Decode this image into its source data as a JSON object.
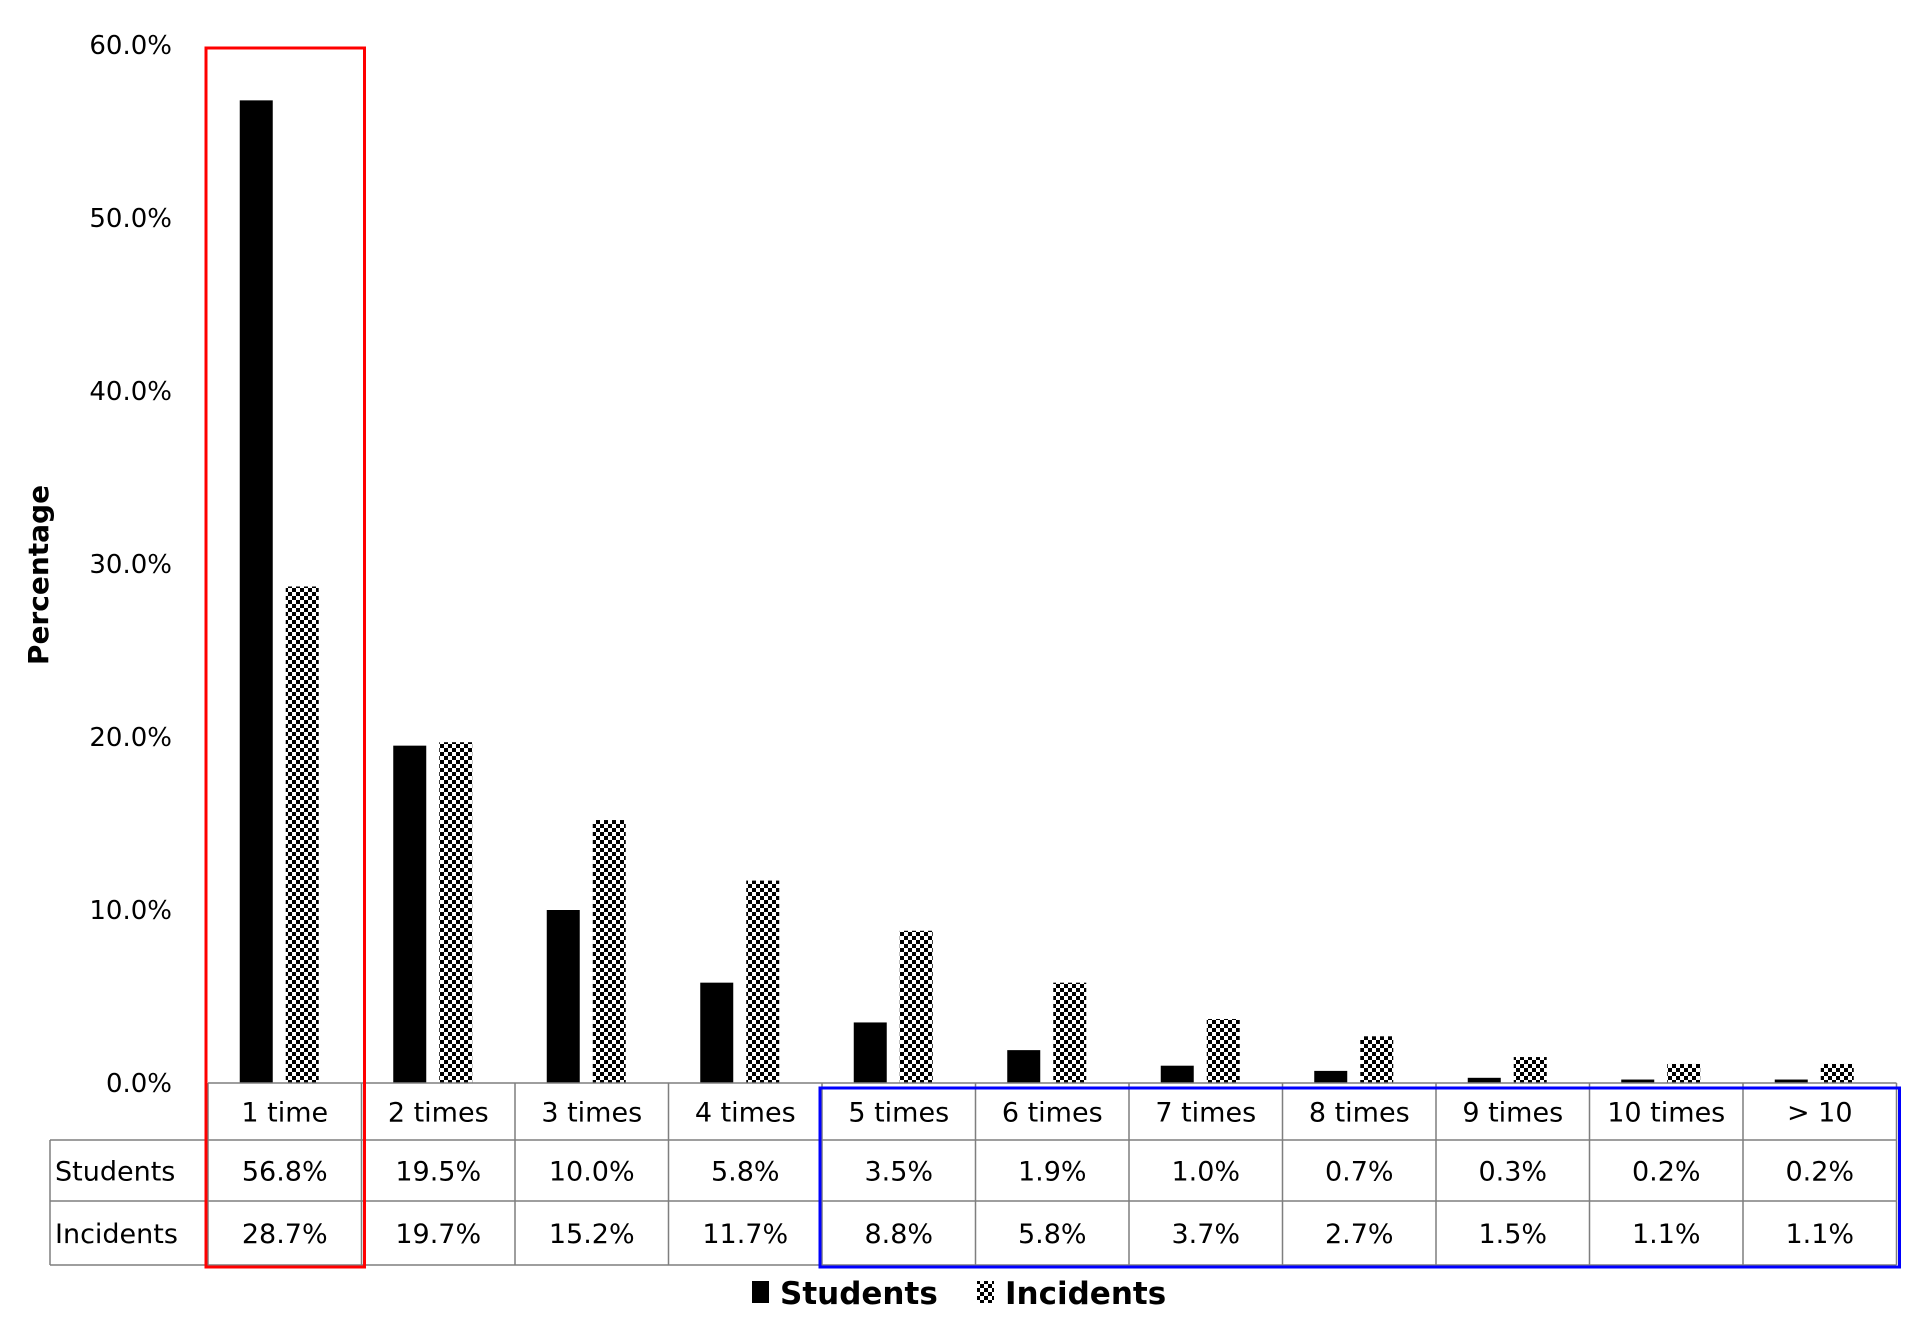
{
  "chart_data": {
    "type": "bar",
    "ylabel": "Percentage",
    "ylim": [
      0,
      60
    ],
    "yticks": [
      "0.0%",
      "10.0%",
      "20.0%",
      "30.0%",
      "40.0%",
      "50.0%",
      "60.0%"
    ],
    "categories": [
      "1 time",
      "2 times",
      "3 times",
      "4 times",
      "5 times",
      "6 times",
      "7 times",
      "8 times",
      "9 times",
      "10 times",
      "> 10"
    ],
    "series": [
      {
        "name": "Students",
        "values": [
          56.8,
          19.5,
          10.0,
          5.8,
          3.5,
          1.9,
          1.0,
          0.7,
          0.3,
          0.2,
          0.2
        ],
        "labels": [
          "56.8%",
          "19.5%",
          "10.0%",
          "5.8%",
          "3.5%",
          "1.9%",
          "1.0%",
          "0.7%",
          "0.3%",
          "0.2%",
          "0.2%"
        ],
        "color": "#000000",
        "pattern": "solid"
      },
      {
        "name": "Incidents",
        "values": [
          28.7,
          19.7,
          15.2,
          11.7,
          8.8,
          5.8,
          3.7,
          2.7,
          1.5,
          1.1,
          1.1
        ],
        "labels": [
          "28.7%",
          "19.7%",
          "15.2%",
          "11.7%",
          "8.8%",
          "5.8%",
          "3.7%",
          "2.7%",
          "1.5%",
          "1.1%",
          "1.1%"
        ],
        "color": "#000000",
        "pattern": "checkered"
      }
    ],
    "grid": false,
    "legend_position": "bottom",
    "data_table": true,
    "highlights": [
      {
        "categories": [
          "1 time"
        ],
        "color": "#ff0000"
      },
      {
        "categories": [
          "5 times",
          "6 times",
          "7 times",
          "8 times",
          "9 times",
          "10 times",
          "> 10"
        ],
        "color": "#0000ff"
      }
    ]
  }
}
